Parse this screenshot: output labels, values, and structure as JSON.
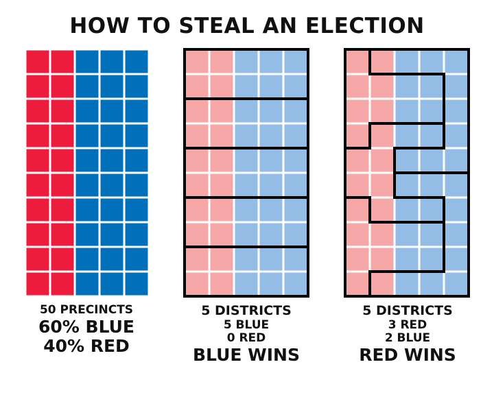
{
  "title": "HOW TO STEAL AN ELECTION",
  "colors": {
    "red": "#ee1c3c",
    "blue": "#0070bb",
    "light_red": "#f6a8a8",
    "light_blue": "#93bde4",
    "border": "#000000"
  },
  "panels": [
    {
      "lines": [
        "50 PRECINCTS",
        "60% BLUE",
        "40% RED"
      ],
      "columns": [
        "red",
        "red",
        "blue",
        "blue",
        "blue"
      ],
      "rows": 10
    },
    {
      "lines": [
        "5 DISTRICTS",
        "5 BLUE",
        "0 RED",
        "BLUE WINS"
      ],
      "columns": [
        "red",
        "red",
        "blue",
        "blue",
        "blue"
      ],
      "rows": 10
    },
    {
      "lines": [
        "5 DISTRICTS",
        "3 RED",
        "2 BLUE",
        "RED WINS"
      ],
      "columns": [
        "red",
        "red",
        "blue",
        "blue",
        "blue"
      ],
      "rows": 10
    }
  ]
}
